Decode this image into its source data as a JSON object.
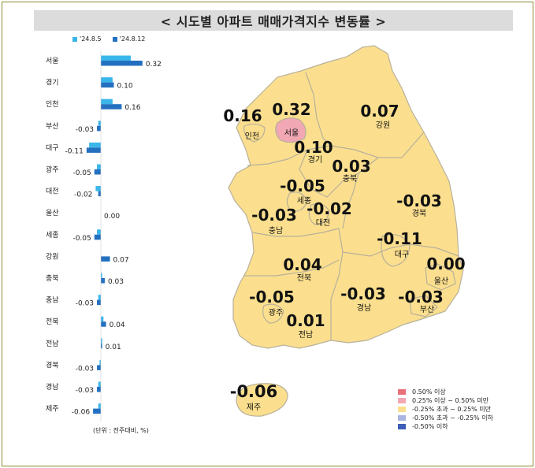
{
  "title": "< 시도별 아파트 매매가격지수 변동률 >",
  "unit_note": "(단위 : 전주대비, %)",
  "colors": {
    "series_prev": "#3ab6ea",
    "series_curr": "#2470c0",
    "land": "#fbdf8e",
    "border": "#b8b09a",
    "seoul_fill": "#f1a8b4"
  },
  "chart_data": {
    "type": "bar",
    "orientation": "horizontal",
    "categories": [
      "서울",
      "경기",
      "인천",
      "부산",
      "대구",
      "광주",
      "대전",
      "울산",
      "세종",
      "강원",
      "충북",
      "충남",
      "전북",
      "전남",
      "경북",
      "경남",
      "제주"
    ],
    "series": [
      {
        "name": "'24.8.5",
        "values": [
          0.23,
          0.09,
          0.09,
          -0.02,
          -0.09,
          -0.03,
          -0.04,
          0.0,
          -0.03,
          0.0,
          0.01,
          -0.02,
          0.02,
          0.01,
          -0.01,
          -0.02,
          -0.02
        ]
      },
      {
        "name": "'24.8.12",
        "values": [
          0.32,
          0.1,
          0.16,
          -0.03,
          -0.11,
          -0.05,
          -0.02,
          0.0,
          -0.05,
          0.07,
          0.03,
          -0.03,
          0.04,
          0.01,
          -0.03,
          -0.03,
          -0.06
        ]
      }
    ],
    "value_labels": [
      "0.32",
      "0.10",
      "0.16",
      "-0.03",
      "-0.11",
      "-0.05",
      "-0.02",
      "0.00",
      "-0.05",
      "0.07",
      "0.03",
      "-0.03",
      "0.04",
      "0.01",
      "-0.03",
      "-0.03",
      "-0.06"
    ]
  },
  "map": {
    "regions": [
      {
        "name": "서울",
        "value": "0.32"
      },
      {
        "name": "인천",
        "value": "0.16"
      },
      {
        "name": "경기",
        "value": "0.10"
      },
      {
        "name": "강원",
        "value": "0.07"
      },
      {
        "name": "충북",
        "value": "0.03"
      },
      {
        "name": "세종",
        "value": "-0.05"
      },
      {
        "name": "대전",
        "value": "-0.02"
      },
      {
        "name": "충남",
        "value": "-0.03"
      },
      {
        "name": "경북",
        "value": "-0.03"
      },
      {
        "name": "대구",
        "value": "-0.11"
      },
      {
        "name": "전북",
        "value": "0.04"
      },
      {
        "name": "울산",
        "value": "0.00"
      },
      {
        "name": "광주",
        "value": "-0.05"
      },
      {
        "name": "경남",
        "value": "-0.03"
      },
      {
        "name": "부산",
        "value": "-0.03"
      },
      {
        "name": "전남",
        "value": "0.01"
      },
      {
        "name": "제주",
        "value": "-0.06"
      }
    ],
    "legend": [
      {
        "label": "0.50% 이상",
        "color": "#e8707a"
      },
      {
        "label": "0.25% 이상 ~ 0.50% 미만",
        "color": "#f1a8b4"
      },
      {
        "label": "-0.25% 초과 ~ 0.25% 미만",
        "color": "#fbdf8e"
      },
      {
        "label": "-0.50% 초과 ~ -0.25% 이하",
        "color": "#a9b4e0"
      },
      {
        "label": "-0.50% 이하",
        "color": "#3c5cb8"
      }
    ]
  }
}
